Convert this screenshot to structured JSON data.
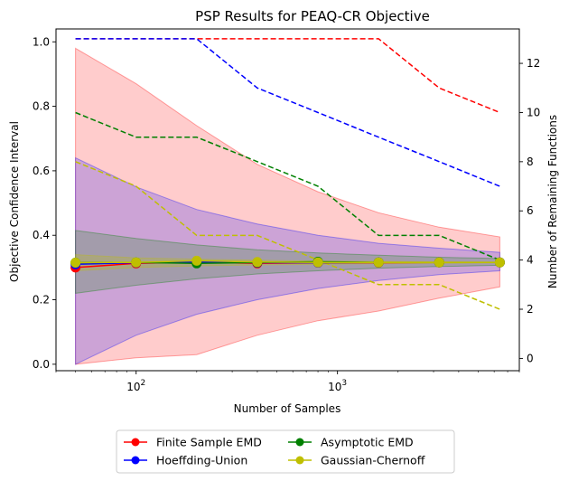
{
  "chart_data": {
    "type": "line",
    "title": "PSP Results for PEAQ-CR Objective",
    "xlabel": "Number of Samples",
    "ylabel": "Objective Confidence Interval",
    "y2label": "Number of Remaining Functions",
    "xscale": "log",
    "xlim": [
      40,
      8000
    ],
    "ylim": [
      -0.02,
      1.04
    ],
    "y2lim": [
      -0.5,
      13.4
    ],
    "x_ticks": [
      {
        "value": 100,
        "base": "10",
        "exp": "2"
      },
      {
        "value": 1000,
        "base": "10",
        "exp": "3"
      }
    ],
    "y_ticks": [
      0.0,
      0.2,
      0.4,
      0.6,
      0.8,
      1.0
    ],
    "y2_ticks": [
      0,
      2,
      4,
      6,
      8,
      10,
      12
    ],
    "x": [
      50,
      100,
      200,
      400,
      800,
      1600,
      3200,
      6400
    ],
    "bands": [
      {
        "name": "Finite Sample EMD",
        "color": "#ff0000",
        "opacity": 0.2,
        "lower": [
          0.0,
          0.02,
          0.03,
          0.09,
          0.135,
          0.165,
          0.205,
          0.24
        ],
        "upper": [
          0.98,
          0.87,
          0.74,
          0.62,
          0.535,
          0.47,
          0.425,
          0.395
        ]
      },
      {
        "name": "Hoeffding-Union",
        "color": "#0000ff",
        "opacity": 0.2,
        "lower": [
          0.0,
          0.09,
          0.155,
          0.2,
          0.235,
          0.26,
          0.278,
          0.29
        ],
        "upper": [
          0.64,
          0.55,
          0.48,
          0.435,
          0.4,
          0.375,
          0.36,
          0.347
        ]
      },
      {
        "name": "Asymptotic EMD",
        "color": "#008000",
        "opacity": 0.2,
        "lower": [
          0.22,
          0.245,
          0.265,
          0.28,
          0.29,
          0.298,
          0.303,
          0.307
        ],
        "upper": [
          0.415,
          0.39,
          0.37,
          0.355,
          0.345,
          0.338,
          0.332,
          0.328
        ]
      },
      {
        "name": "Gaussian-Chernoff",
        "color": "#bfbf00",
        "opacity": 0.25,
        "lower": [
          0.29,
          0.3,
          0.305,
          0.308,
          0.31,
          0.312,
          0.313,
          0.314
        ],
        "upper": [
          0.34,
          0.33,
          0.326,
          0.323,
          0.32,
          0.319,
          0.318,
          0.317
        ]
      }
    ],
    "series": [
      {
        "name": "Finite Sample EMD",
        "color": "#ff0000",
        "values": [
          0.3,
          0.313,
          0.317,
          0.313,
          0.315,
          0.315,
          0.316,
          0.316
        ]
      },
      {
        "name": "Hoeffding-Union",
        "color": "#0000ff",
        "values": [
          0.31,
          0.315,
          0.317,
          0.315,
          0.315,
          0.316,
          0.316,
          0.316
        ]
      },
      {
        "name": "Asymptotic EMD",
        "color": "#008000",
        "values": [
          0.315,
          0.316,
          0.313,
          0.316,
          0.318,
          0.316,
          0.316,
          0.316
        ]
      },
      {
        "name": "Gaussian-Chernoff",
        "color": "#bfbf00",
        "values": [
          0.315,
          0.316,
          0.321,
          0.317,
          0.316,
          0.316,
          0.316,
          0.316
        ]
      }
    ],
    "remaining_functions": [
      {
        "name": "Finite Sample EMD",
        "color": "#ff0000",
        "values": [
          13,
          13,
          13,
          13,
          13,
          13,
          11,
          10
        ]
      },
      {
        "name": "Hoeffding-Union",
        "color": "#0000ff",
        "values": [
          13,
          13,
          13,
          11,
          10,
          9,
          8,
          7
        ]
      },
      {
        "name": "Asymptotic EMD",
        "color": "#008000",
        "values": [
          10,
          9,
          9,
          8,
          7,
          5,
          5,
          4
        ]
      },
      {
        "name": "Gaussian-Chernoff",
        "color": "#bfbf00",
        "values": [
          8,
          7,
          5,
          5,
          4,
          3,
          3,
          2
        ]
      }
    ],
    "legend": {
      "placement": "below",
      "columns": 2,
      "entries": [
        "Finite Sample EMD",
        "Asymptotic EMD",
        "Hoeffding-Union",
        "Gaussian-Chernoff"
      ]
    }
  }
}
